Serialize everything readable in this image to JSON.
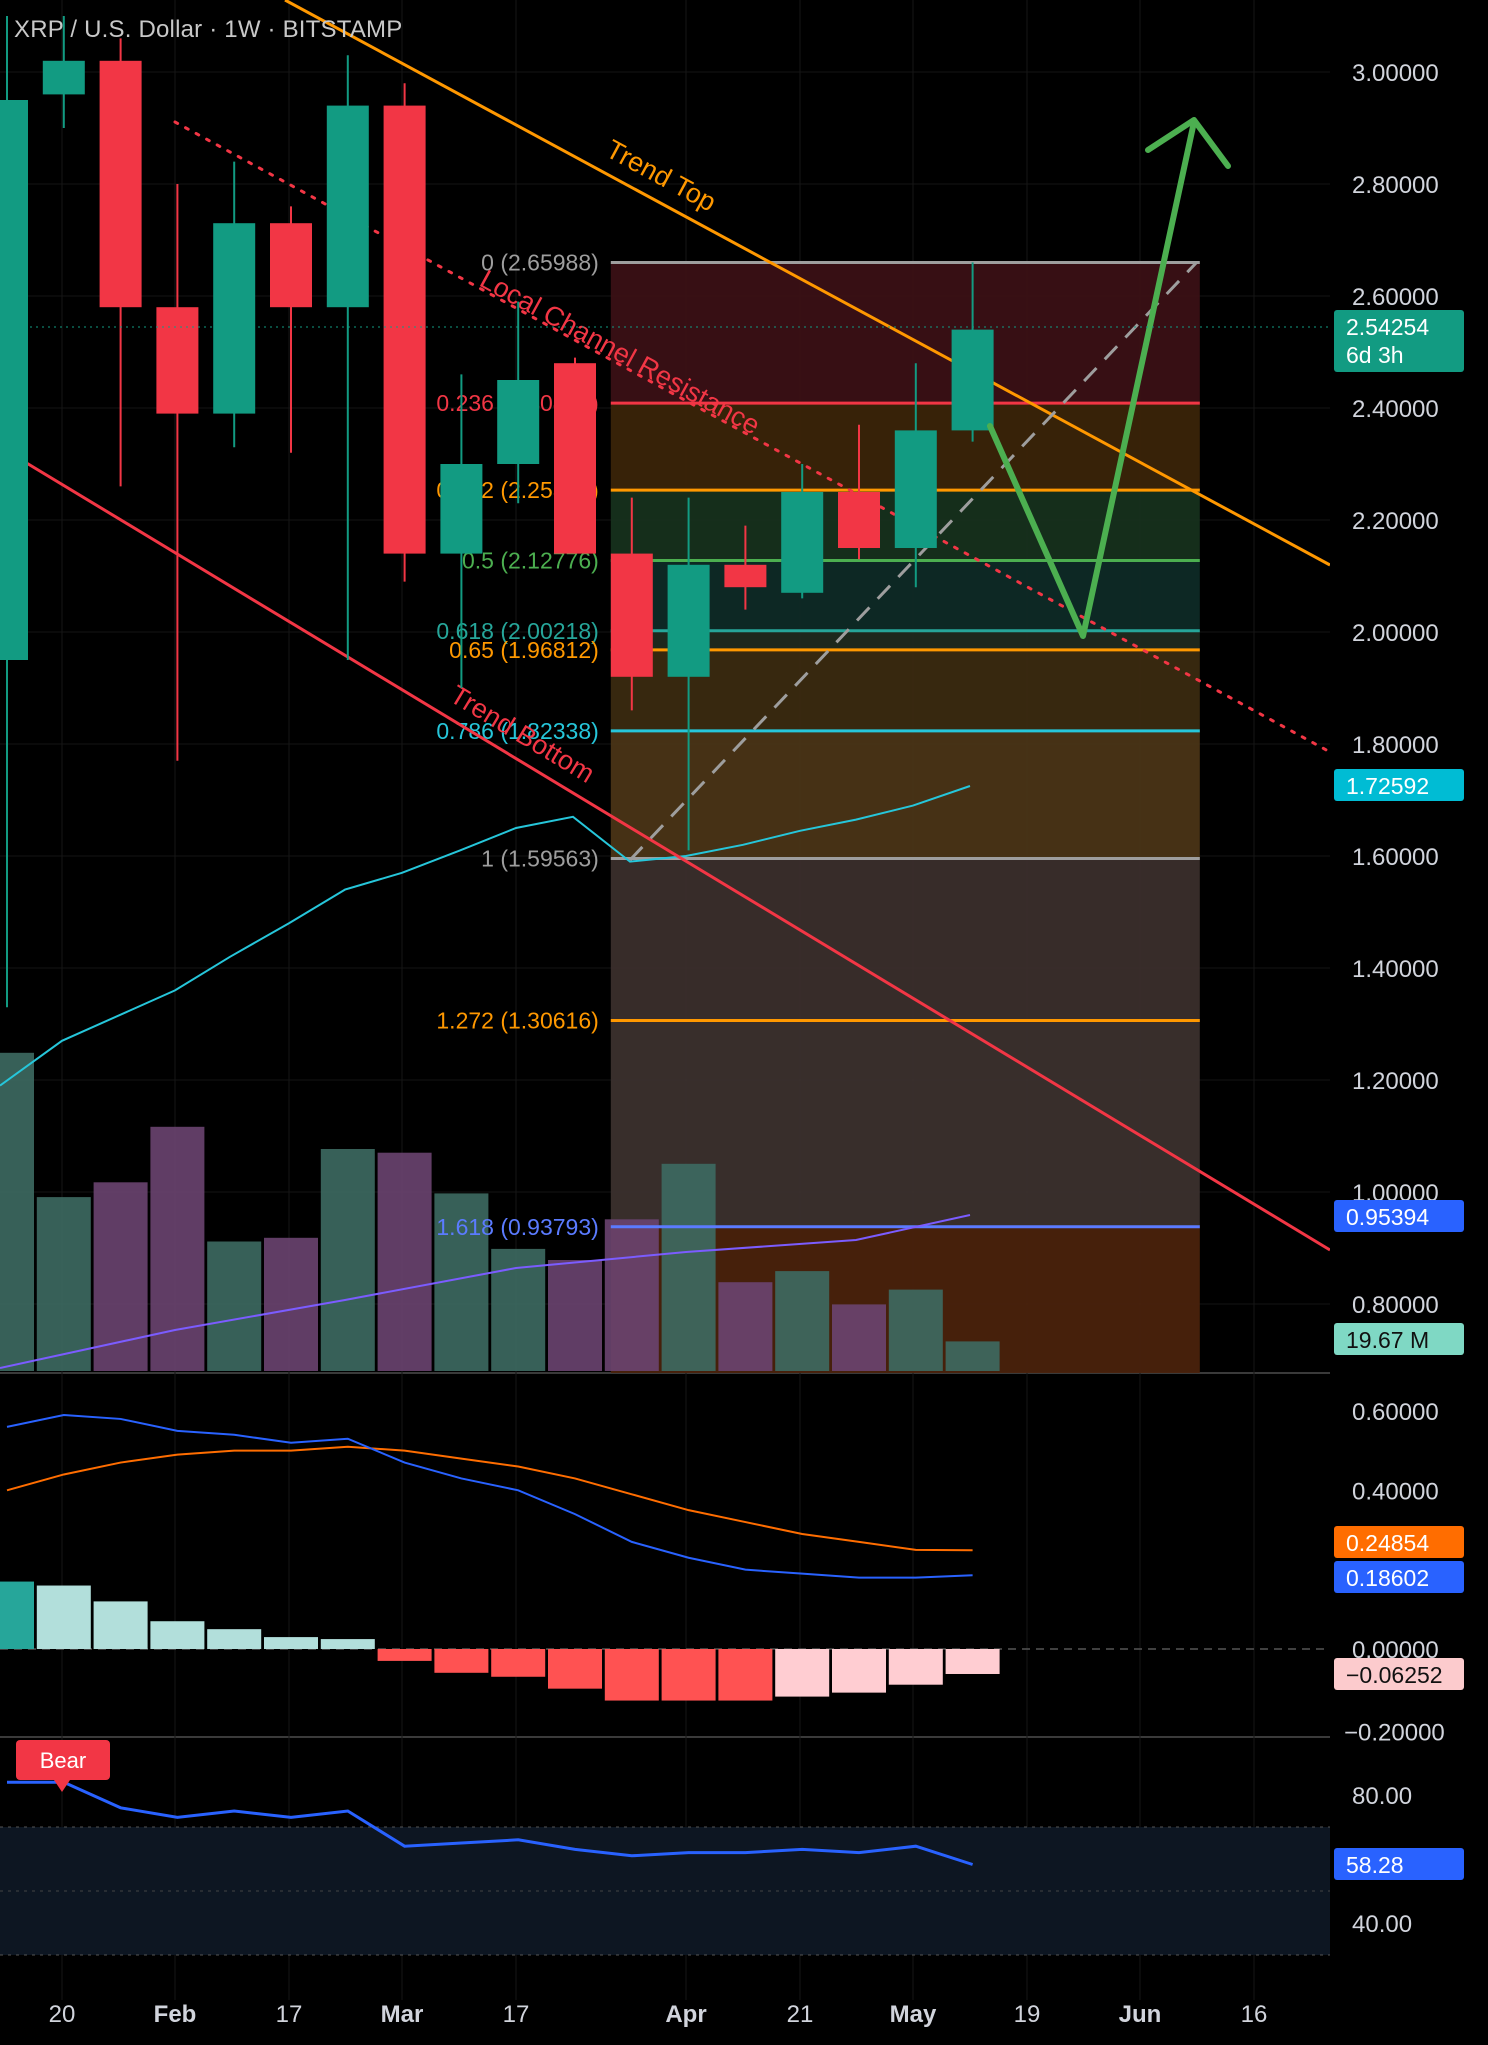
{
  "header": {
    "title": "XRP / U.S. Dollar · 1W · BITSTAMP"
  },
  "colors": {
    "bull": "#129b82",
    "bear": "#f23645",
    "orange": "#ff9800",
    "green_arrow": "#4caf50",
    "ma": "#26c6da",
    "macd": "#2962ff",
    "signal": "#ff6d00",
    "rsi": "#2962ff",
    "vol_bull": "#3d6a62",
    "vol_bear": "#6a4470",
    "axis_text": "#d1d4dc"
  },
  "x_axis": {
    "labels": [
      "20",
      "Feb",
      "17",
      "Mar",
      "17",
      "Apr",
      "21",
      "May",
      "19",
      "Jun",
      "16"
    ]
  },
  "price_axis": {
    "ticks": [
      "3.00000",
      "2.80000",
      "2.60000",
      "2.40000",
      "2.20000",
      "2.00000",
      "1.80000",
      "1.60000",
      "1.40000",
      "1.20000",
      "1.00000",
      "0.80000"
    ],
    "badges": [
      {
        "text": "2.54254",
        "sub": "6d 3h",
        "color": "#129b82"
      },
      {
        "text": "1.72592",
        "color": "#00bcd4"
      },
      {
        "text": "0.95394",
        "color": "#2962ff"
      },
      {
        "text": "19.67 M",
        "color": "#7fd8c4"
      }
    ]
  },
  "macd_axis": {
    "ticks": [
      "0.60000",
      "0.40000",
      "0.00000",
      "−0.20000"
    ],
    "badges": [
      {
        "text": "0.24854",
        "color": "#ff6d00"
      },
      {
        "text": "0.18602",
        "color": "#2962ff"
      },
      {
        "text": "−0.06252",
        "color": "#fccbcd"
      }
    ]
  },
  "rsi_axis": {
    "ticks": [
      "80.00",
      "40.00"
    ],
    "badges": [
      {
        "text": "58.28",
        "color": "#2962ff"
      }
    ],
    "bear_label": "Bear"
  },
  "annotations": {
    "trend_top": "Trend Top",
    "trend_bottom": "Trend Bottom",
    "local_channel": "Local Channel Resistance"
  },
  "chart_data": {
    "type": "candlestick",
    "title": "XRP / U.S. Dollar · 1W · BITSTAMP",
    "x_type": "weekly",
    "ylim": [
      0.7,
      3.1
    ],
    "candles": [
      {
        "o": 1.95,
        "h": 3.1,
        "l": 1.33,
        "c": 2.95
      },
      {
        "o": 2.96,
        "h": 3.1,
        "l": 2.9,
        "c": 3.02
      },
      {
        "o": 3.02,
        "h": 3.06,
        "l": 2.26,
        "c": 2.58
      },
      {
        "o": 2.58,
        "h": 2.8,
        "l": 1.77,
        "c": 2.39
      },
      {
        "o": 2.39,
        "h": 2.84,
        "l": 2.33,
        "c": 2.73
      },
      {
        "o": 2.73,
        "h": 2.76,
        "l": 2.32,
        "c": 2.58
      },
      {
        "o": 2.58,
        "h": 3.03,
        "l": 1.95,
        "c": 2.94
      },
      {
        "o": 2.94,
        "h": 2.98,
        "l": 2.09,
        "c": 2.14
      },
      {
        "o": 2.14,
        "h": 2.46,
        "l": 1.9,
        "c": 2.3
      },
      {
        "o": 2.3,
        "h": 2.59,
        "l": 2.23,
        "c": 2.45
      },
      {
        "o": 2.48,
        "h": 2.49,
        "l": 2.14,
        "c": 2.14
      },
      {
        "o": 2.14,
        "h": 2.24,
        "l": 1.86,
        "c": 1.92
      },
      {
        "o": 1.92,
        "h": 2.24,
        "l": 1.61,
        "c": 2.12
      },
      {
        "o": 2.12,
        "h": 2.19,
        "l": 2.04,
        "c": 2.08
      },
      {
        "o": 2.07,
        "h": 2.3,
        "l": 2.06,
        "c": 2.25
      },
      {
        "o": 2.25,
        "h": 2.37,
        "l": 2.13,
        "c": 2.15
      },
      {
        "o": 2.15,
        "h": 2.48,
        "l": 2.08,
        "c": 2.36
      },
      {
        "o": 2.36,
        "h": 2.66,
        "l": 2.34,
        "c": 2.54
      }
    ],
    "volume_rel": [
      0.86,
      0.47,
      0.51,
      0.66,
      0.35,
      0.36,
      0.6,
      0.59,
      0.48,
      0.33,
      0.3,
      0.41,
      0.56,
      0.24,
      0.27,
      0.18,
      0.22,
      0.08
    ],
    "moving_average": [
      1.19,
      1.28,
      1.35,
      1.41,
      1.48,
      1.54,
      1.61,
      1.64,
      1.68,
      1.73,
      1.76,
      1.78,
      1.6,
      1.62,
      1.65,
      1.67,
      1.7,
      1.73
    ],
    "fibonacci": {
      "range": [
        2.65988,
        1.59563
      ],
      "levels": [
        {
          "ratio": "0",
          "value": 2.65988,
          "label": "0 (2.65988)",
          "color": "#9e9e9e"
        },
        {
          "ratio": "0.236",
          "value": 2.40872,
          "label": "0.236 (2.40872)",
          "color": "#f23645"
        },
        {
          "ratio": "0.382",
          "value": 2.25334,
          "label": "0.382 (2.25334)",
          "color": "#ff9800"
        },
        {
          "ratio": "0.5",
          "value": 2.12776,
          "label": "0.5 (2.12776)",
          "color": "#4caf50"
        },
        {
          "ratio": "0.618",
          "value": 2.00218,
          "label": "0.618 (2.00218)",
          "color": "#26a69a"
        },
        {
          "ratio": "0.65",
          "value": 1.96812,
          "label": "0.65 (1.96812)",
          "color": "#ff9800"
        },
        {
          "ratio": "0.786",
          "value": 1.82338,
          "label": "0.786 (1.82338)",
          "color": "#26c6da"
        },
        {
          "ratio": "1",
          "value": 1.59563,
          "label": "1 (1.59563)",
          "color": "#9e9e9e"
        },
        {
          "ratio": "1.272",
          "value": 1.30616,
          "label": "1.272 (1.30616)",
          "color": "#ff9800"
        },
        {
          "ratio": "1.618",
          "value": 0.93793,
          "label": "1.618 (0.93793)",
          "color": "#5b7bff"
        }
      ]
    },
    "projection_path": [
      [
        2.4,
        16.8
      ],
      [
        1.98,
        19.0
      ],
      [
        2.89,
        21.0
      ]
    ],
    "macd": {
      "macd_line": [
        0.56,
        0.59,
        0.58,
        0.55,
        0.54,
        0.52,
        0.53,
        0.47,
        0.43,
        0.4,
        0.34,
        0.27,
        0.23,
        0.2,
        0.19,
        0.18,
        0.18,
        0.186
      ],
      "signal_line": [
        0.4,
        0.44,
        0.47,
        0.49,
        0.5,
        0.5,
        0.51,
        0.5,
        0.48,
        0.46,
        0.43,
        0.39,
        0.35,
        0.32,
        0.29,
        0.27,
        0.25,
        0.249
      ],
      "histogram": [
        0.17,
        0.16,
        0.12,
        0.07,
        0.05,
        0.03,
        0.025,
        -0.03,
        -0.06,
        -0.07,
        -0.1,
        -0.13,
        -0.13,
        -0.13,
        -0.12,
        -0.11,
        -0.09,
        -0.063
      ],
      "ylim": [
        -0.2,
        0.65
      ]
    },
    "rsi": {
      "values": [
        84,
        84,
        76,
        73,
        75,
        73,
        75,
        64,
        65,
        66,
        63,
        61,
        62,
        62,
        63,
        62,
        64,
        58.28
      ],
      "upper": 70,
      "lower": 30,
      "ylim": [
        20,
        100
      ]
    }
  }
}
